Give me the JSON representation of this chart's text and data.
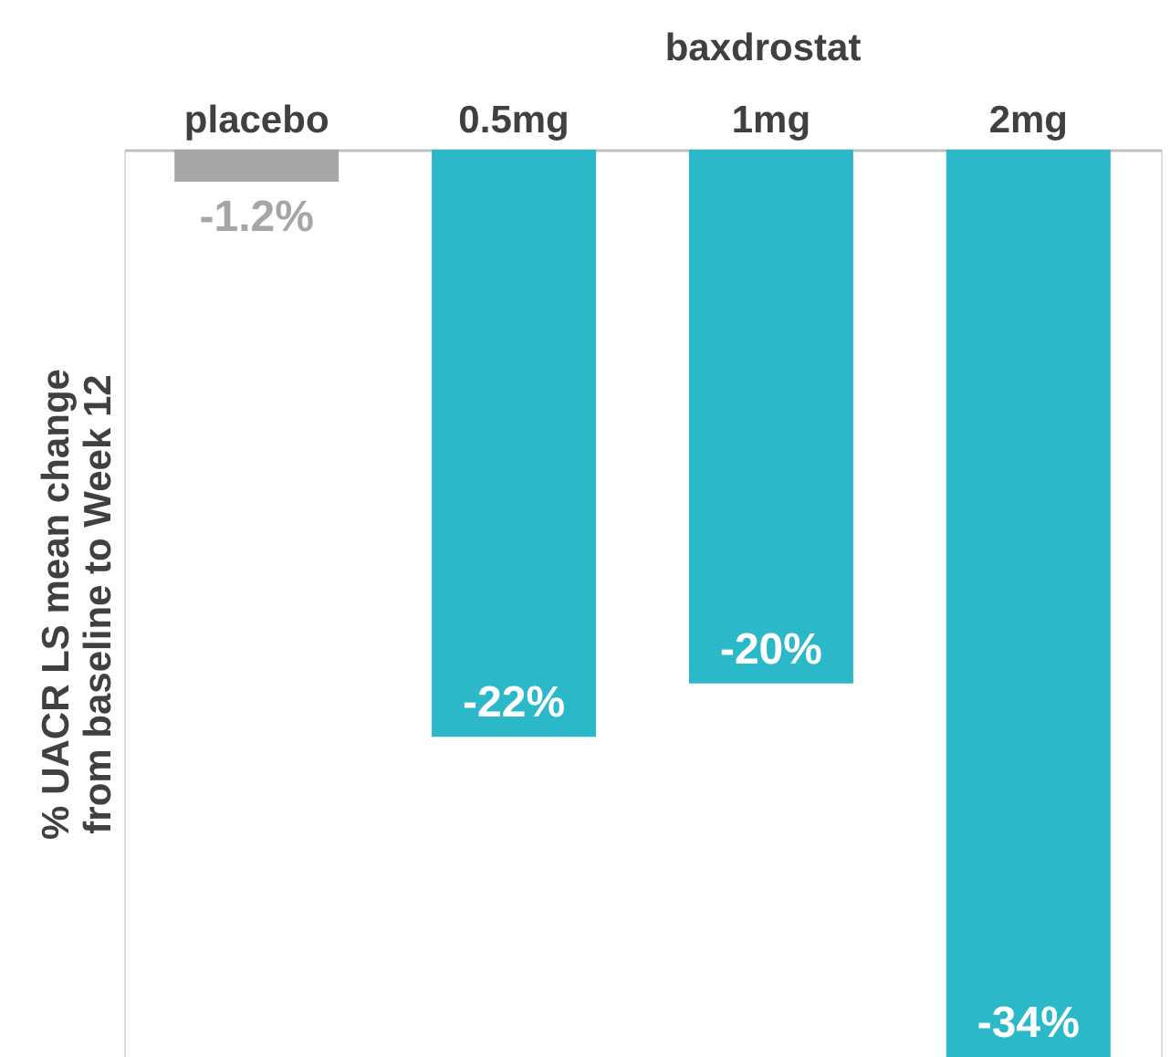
{
  "chart_data": {
    "type": "bar",
    "ylabel": "% UACR LS mean change\nfrom baseline to Week 12",
    "categories": [
      "placebo",
      "0.5mg",
      "1mg",
      "2mg"
    ],
    "values": [
      -1.2,
      -22,
      -20,
      -34
    ],
    "colors": [
      "#a6a6a6",
      "#2bb8c8",
      "#2bb8c8",
      "#2bb8c8"
    ],
    "value_labels": [
      "-1.2%",
      "-22%",
      "-20%",
      "-34%"
    ],
    "annotations": [
      "baxdrostat"
    ]
  }
}
